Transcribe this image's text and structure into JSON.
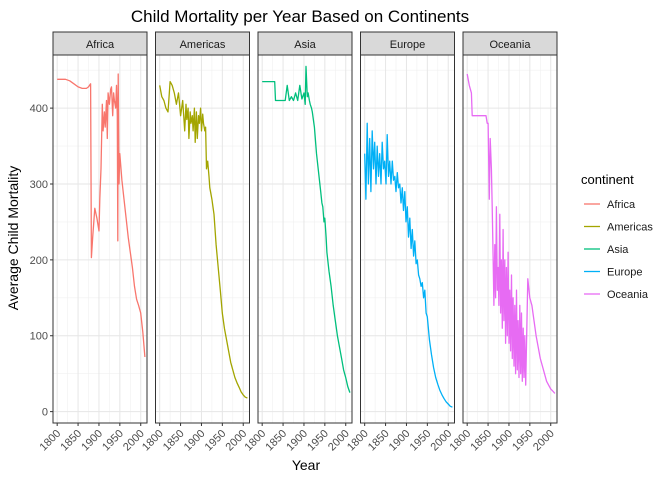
{
  "chart_data": {
    "type": "line",
    "title": "Child Mortality per Year Based on Continents",
    "xlabel": "Year",
    "ylabel": "Average Child Mortality",
    "x_ticks": [
      1800,
      1850,
      1900,
      1950,
      2000
    ],
    "y_ticks": [
      0,
      100,
      200,
      300,
      400
    ],
    "xlim": [
      1790,
      2015
    ],
    "ylim": [
      -15,
      470
    ],
    "grid": true,
    "legend": {
      "title": "continent",
      "placement": "right",
      "entries": [
        "Africa",
        "Americas",
        "Asia",
        "Europe",
        "Oceania"
      ]
    },
    "series": [
      {
        "name": "Africa",
        "color": "#F8766D",
        "x": [
          1800,
          1810,
          1820,
          1830,
          1840,
          1850,
          1860,
          1870,
          1875,
          1880,
          1882,
          1885,
          1890,
          1895,
          1900,
          1902,
          1905,
          1908,
          1910,
          1913,
          1915,
          1918,
          1920,
          1922,
          1925,
          1928,
          1930,
          1933,
          1935,
          1937,
          1940,
          1942,
          1944,
          1945,
          1946,
          1948,
          1950,
          1955,
          1960,
          1965,
          1970,
          1975,
          1980,
          1985,
          1990,
          1995,
          2000,
          2005,
          2010
        ],
        "y": [
          438,
          438,
          438,
          436,
          432,
          428,
          426,
          426,
          428,
          432,
          203,
          230,
          268,
          255,
          238,
          280,
          320,
          405,
          370,
          395,
          375,
          410,
          360,
          420,
          405,
          425,
          428,
          390,
          420,
          410,
          400,
          430,
          390,
          225,
          445,
          300,
          340,
          305,
          280,
          255,
          230,
          210,
          190,
          165,
          148,
          140,
          130,
          105,
          72
        ]
      },
      {
        "name": "Americas",
        "color": "#A3A500",
        "x": [
          1800,
          1805,
          1810,
          1815,
          1820,
          1825,
          1830,
          1835,
          1840,
          1845,
          1850,
          1855,
          1860,
          1863,
          1865,
          1868,
          1870,
          1873,
          1875,
          1878,
          1880,
          1883,
          1885,
          1888,
          1890,
          1893,
          1895,
          1898,
          1900,
          1903,
          1905,
          1908,
          1910,
          1912,
          1915,
          1918,
          1920,
          1925,
          1930,
          1935,
          1940,
          1945,
          1950,
          1955,
          1960,
          1965,
          1970,
          1975,
          1980,
          1985,
          1990,
          1995,
          2000,
          2005,
          2010
        ],
        "y": [
          430,
          415,
          410,
          400,
          395,
          435,
          430,
          420,
          405,
          420,
          390,
          410,
          370,
          405,
          385,
          400,
          360,
          395,
          380,
          390,
          370,
          400,
          355,
          395,
          360,
          390,
          380,
          400,
          370,
          392,
          380,
          370,
          375,
          320,
          330,
          310,
          295,
          280,
          260,
          220,
          190,
          160,
          130,
          110,
          95,
          80,
          65,
          55,
          45,
          38,
          32,
          26,
          22,
          19,
          18
        ]
      },
      {
        "name": "Asia",
        "color": "#00BF7D",
        "x": [
          1800,
          1810,
          1820,
          1830,
          1832,
          1840,
          1850,
          1855,
          1860,
          1865,
          1870,
          1875,
          1880,
          1885,
          1890,
          1895,
          1900,
          1903,
          1905,
          1908,
          1910,
          1913,
          1915,
          1918,
          1920,
          1925,
          1930,
          1935,
          1940,
          1943,
          1945,
          1948,
          1950,
          1953,
          1955,
          1960,
          1965,
          1970,
          1975,
          1980,
          1985,
          1990,
          1995,
          2000,
          2005,
          2010
        ],
        "y": [
          435,
          435,
          435,
          435,
          410,
          410,
          410,
          410,
          430,
          410,
          415,
          410,
          420,
          410,
          430,
          412,
          420,
          405,
          455,
          415,
          420,
          410,
          405,
          400,
          395,
          375,
          340,
          315,
          290,
          275,
          270,
          250,
          255,
          230,
          210,
          185,
          165,
          140,
          120,
          100,
          85,
          70,
          55,
          45,
          33,
          25
        ]
      },
      {
        "name": "Europe",
        "color": "#00B0F6",
        "x": [
          1800,
          1803,
          1806,
          1809,
          1812,
          1815,
          1818,
          1821,
          1824,
          1827,
          1830,
          1833,
          1836,
          1839,
          1842,
          1845,
          1848,
          1851,
          1854,
          1857,
          1860,
          1863,
          1866,
          1869,
          1872,
          1875,
          1878,
          1881,
          1884,
          1887,
          1890,
          1893,
          1896,
          1899,
          1902,
          1905,
          1908,
          1911,
          1914,
          1917,
          1920,
          1923,
          1926,
          1929,
          1932,
          1935,
          1938,
          1941,
          1944,
          1947,
          1950,
          1955,
          1960,
          1965,
          1970,
          1975,
          1980,
          1985,
          1990,
          1995,
          2000,
          2005,
          2010
        ],
        "y": [
          340,
          280,
          380,
          300,
          360,
          290,
          370,
          320,
          355,
          300,
          350,
          310,
          340,
          300,
          355,
          320,
          330,
          300,
          365,
          310,
          330,
          300,
          330,
          305,
          310,
          290,
          315,
          295,
          300,
          275,
          295,
          265,
          290,
          250,
          270,
          230,
          255,
          215,
          240,
          205,
          225,
          195,
          200,
          180,
          175,
          165,
          170,
          150,
          160,
          130,
          125,
          95,
          75,
          58,
          45,
          36,
          28,
          22,
          17,
          13,
          10,
          7,
          6
        ]
      },
      {
        "name": "Oceania",
        "color": "#E76BF3",
        "x": [
          1800,
          1805,
          1810,
          1812,
          1820,
          1830,
          1840,
          1845,
          1848,
          1850,
          1853,
          1855,
          1858,
          1860,
          1862,
          1864,
          1866,
          1868,
          1870,
          1872,
          1874,
          1876,
          1878,
          1880,
          1882,
          1884,
          1886,
          1888,
          1890,
          1892,
          1894,
          1896,
          1898,
          1900,
          1902,
          1904,
          1906,
          1908,
          1910,
          1912,
          1914,
          1916,
          1918,
          1920,
          1922,
          1924,
          1926,
          1928,
          1930,
          1932,
          1934,
          1936,
          1938,
          1940,
          1945,
          1950,
          1955,
          1960,
          1965,
          1970,
          1975,
          1980,
          1985,
          1990,
          1995,
          2000,
          2005,
          2010
        ],
        "y": [
          445,
          430,
          420,
          390,
          390,
          390,
          390,
          390,
          380,
          380,
          280,
          360,
          320,
          270,
          205,
          140,
          220,
          150,
          270,
          160,
          190,
          140,
          260,
          130,
          200,
          110,
          240,
          120,
          200,
          90,
          190,
          100,
          210,
          90,
          160,
          80,
          180,
          70,
          150,
          60,
          140,
          50,
          160,
          55,
          120,
          45,
          140,
          50,
          130,
          40,
          110,
          45,
          100,
          35,
          175,
          150,
          140,
          120,
          100,
          85,
          70,
          60,
          50,
          40,
          35,
          30,
          27,
          24
        ]
      }
    ]
  }
}
